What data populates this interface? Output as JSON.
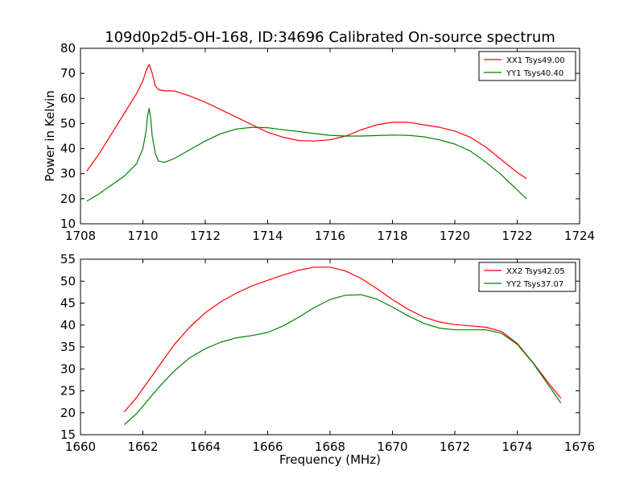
{
  "colors": {
    "xx": "#ff0000",
    "yy": "#008000",
    "axis": "#000000",
    "background": "#ffffff"
  },
  "chart_data": [
    {
      "type": "line",
      "title": "109d0p2d5-OH-168, ID:34696 Calibrated On-source spectrum",
      "xlabel": "",
      "ylabel": "Power in Kelvin",
      "xlim": [
        1708,
        1724
      ],
      "ylim": [
        10,
        80
      ],
      "xticks": [
        1708,
        1710,
        1712,
        1714,
        1716,
        1718,
        1720,
        1722,
        1724
      ],
      "yticks": [
        10,
        20,
        30,
        40,
        50,
        60,
        70,
        80
      ],
      "legend_position": "top-right",
      "series": [
        {
          "name": "XX1 Tsys49.00",
          "color": "#ff0000",
          "x": [
            1708.2,
            1708.6,
            1709.0,
            1709.4,
            1709.8,
            1710.0,
            1710.1,
            1710.2,
            1710.3,
            1710.4,
            1710.5,
            1710.7,
            1711.0,
            1711.5,
            1712.0,
            1712.5,
            1713.0,
            1713.5,
            1714.0,
            1714.5,
            1715.0,
            1715.5,
            1716.0,
            1716.5,
            1717.0,
            1717.5,
            1718.0,
            1718.5,
            1719.0,
            1719.5,
            1720.0,
            1720.5,
            1721.0,
            1721.5,
            1722.0,
            1722.3
          ],
          "y": [
            31,
            38,
            46,
            54,
            62,
            67,
            71,
            73.5,
            70,
            65,
            63.5,
            63,
            63,
            61,
            58.5,
            55.5,
            52.5,
            49.5,
            46.5,
            44.5,
            43.2,
            43,
            43.5,
            45,
            47.5,
            49.5,
            50.5,
            50.5,
            49.5,
            48.5,
            47,
            44.5,
            40.5,
            35.5,
            30.5,
            28
          ]
        },
        {
          "name": "YY1 Tsys40.40",
          "color": "#008000",
          "x": [
            1708.2,
            1708.6,
            1709.0,
            1709.4,
            1709.8,
            1710.0,
            1710.1,
            1710.15,
            1710.2,
            1710.25,
            1710.3,
            1710.4,
            1710.5,
            1710.7,
            1711.0,
            1711.5,
            1712.0,
            1712.5,
            1713.0,
            1713.5,
            1714.0,
            1714.5,
            1715.0,
            1715.5,
            1716.0,
            1716.5,
            1717.0,
            1717.5,
            1718.0,
            1718.5,
            1719.0,
            1719.5,
            1720.0,
            1720.5,
            1721.0,
            1721.5,
            1722.0,
            1722.3
          ],
          "y": [
            19,
            22,
            25.5,
            29,
            34,
            40,
            47,
            53,
            56,
            52,
            45,
            38,
            35,
            34.5,
            36,
            39.5,
            43,
            46,
            47.8,
            48.5,
            48.3,
            47.5,
            46.8,
            46,
            45.3,
            45,
            45,
            45.2,
            45.4,
            45.3,
            44.7,
            43.5,
            41.8,
            39,
            34.5,
            29.5,
            23.5,
            20
          ]
        }
      ]
    },
    {
      "type": "line",
      "title": "",
      "xlabel": "Frequency (MHz)",
      "ylabel": "",
      "xlim": [
        1660,
        1676
      ],
      "ylim": [
        15,
        55
      ],
      "xticks": [
        1660,
        1662,
        1664,
        1666,
        1668,
        1670,
        1672,
        1674,
        1676
      ],
      "yticks": [
        15,
        20,
        25,
        30,
        35,
        40,
        45,
        50,
        55
      ],
      "legend_position": "top-right",
      "series": [
        {
          "name": "XX2 Tsys42.05",
          "color": "#ff0000",
          "x": [
            1661.4,
            1661.8,
            1662.2,
            1662.6,
            1663.0,
            1663.5,
            1664.0,
            1664.5,
            1665.0,
            1665.5,
            1666.0,
            1666.5,
            1667.0,
            1667.5,
            1668.0,
            1668.5,
            1669.0,
            1669.5,
            1670.0,
            1670.5,
            1671.0,
            1671.5,
            1672.0,
            1672.5,
            1673.0,
            1673.5,
            1674.0,
            1674.5,
            1675.0,
            1675.4
          ],
          "y": [
            20.2,
            23.5,
            27.5,
            31.5,
            35.5,
            39.5,
            42.8,
            45.3,
            47.3,
            48.9,
            50.2,
            51.4,
            52.5,
            53.2,
            53.2,
            52.3,
            50.6,
            48.3,
            45.8,
            43.6,
            41.8,
            40.7,
            40.1,
            39.8,
            39.5,
            38.5,
            35.8,
            31.5,
            26.8,
            23.3
          ]
        },
        {
          "name": "YY2 Tsys37.07",
          "color": "#008000",
          "x": [
            1661.4,
            1661.8,
            1662.2,
            1662.6,
            1663.0,
            1663.5,
            1664.0,
            1664.5,
            1665.0,
            1665.5,
            1666.0,
            1666.5,
            1667.0,
            1667.5,
            1668.0,
            1668.5,
            1669.0,
            1669.5,
            1670.0,
            1670.5,
            1671.0,
            1671.5,
            1672.0,
            1672.5,
            1673.0,
            1673.5,
            1674.0,
            1674.5,
            1675.0,
            1675.4
          ],
          "y": [
            17.3,
            19.8,
            23.2,
            26.5,
            29.5,
            32.5,
            34.6,
            36.1,
            37.1,
            37.6,
            38.3,
            39.8,
            41.8,
            44,
            45.8,
            46.8,
            46.9,
            45.9,
            44.1,
            42.1,
            40.4,
            39.3,
            38.9,
            38.9,
            38.9,
            38.1,
            35.6,
            31.4,
            26.3,
            22.2
          ]
        }
      ]
    }
  ]
}
